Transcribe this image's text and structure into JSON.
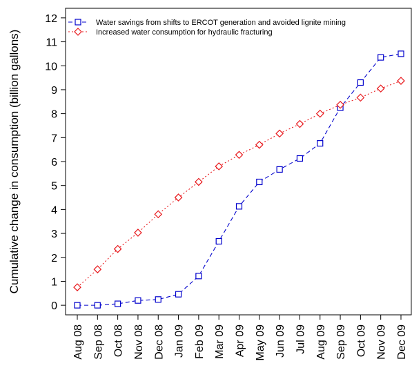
{
  "chart_data": {
    "type": "line",
    "title": "",
    "xlabel": "",
    "ylabel": "Cumulative change in consumption (billion gallons)",
    "categories": [
      "Aug 08",
      "Sep 08",
      "Oct 08",
      "Nov 08",
      "Dec 08",
      "Jan 09",
      "Feb 09",
      "Mar 09",
      "Apr 09",
      "May 09",
      "Jun 09",
      "Jul 09",
      "Aug 09",
      "Sep 09",
      "Oct 09",
      "Nov 09",
      "Dec 09"
    ],
    "ylim": [
      -0.4,
      12.4
    ],
    "yticks": [
      0,
      1,
      2,
      3,
      4,
      5,
      6,
      7,
      8,
      9,
      10,
      11,
      12
    ],
    "grid": false,
    "legend_position": "top-left",
    "series": [
      {
        "name": "Water savings from shifts to ERCOT generation and avoided lignite mining",
        "color": "#0000cc",
        "marker": "square",
        "line_style": "dashed",
        "values": [
          0.0,
          0.0,
          0.06,
          0.2,
          0.24,
          0.46,
          1.22,
          2.67,
          4.13,
          5.15,
          5.67,
          6.13,
          6.76,
          8.25,
          9.3,
          10.35,
          10.5
        ]
      },
      {
        "name": "Increased water consumption for hydraulic fracturing",
        "color": "#e8191d",
        "marker": "diamond",
        "line_style": "dotted",
        "values": [
          0.75,
          1.5,
          2.35,
          3.03,
          3.8,
          4.5,
          5.15,
          5.8,
          6.28,
          6.7,
          7.17,
          7.57,
          8.0,
          8.37,
          8.67,
          9.05,
          9.37
        ]
      }
    ]
  }
}
